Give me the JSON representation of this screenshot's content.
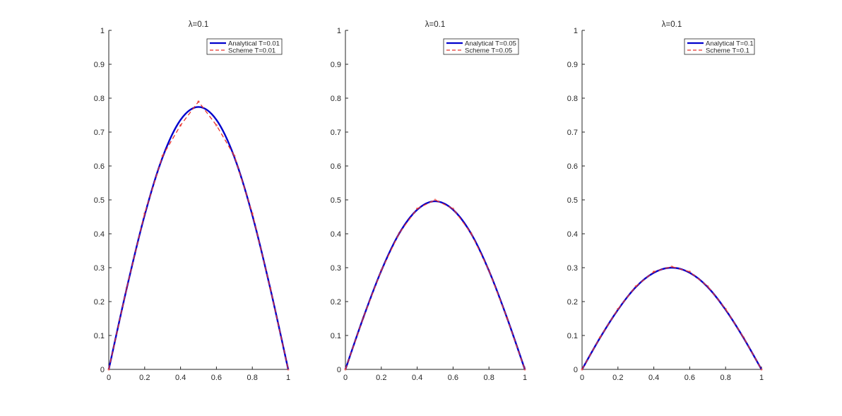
{
  "chart_data": [
    {
      "type": "line",
      "title": "λ=0.1",
      "xlim": [
        0,
        1
      ],
      "ylim": [
        0,
        1
      ],
      "xticks": [
        "0",
        "0.2",
        "0.4",
        "0.6",
        "0.8",
        "1"
      ],
      "yticks": [
        "0",
        "0.1",
        "0.2",
        "0.3",
        "0.4",
        "0.5",
        "0.6",
        "0.7",
        "0.8",
        "0.9",
        "1"
      ],
      "grid": false,
      "legend_position": "top-right",
      "series": [
        {
          "name": "Analytical T=0.01",
          "style": "solid",
          "color": "#0000cc",
          "x": [
            0,
            0.1,
            0.2,
            0.3,
            0.4,
            0.5,
            0.6,
            0.7,
            0.8,
            0.9,
            1
          ],
          "y": [
            0,
            0.239,
            0.455,
            0.626,
            0.736,
            0.774,
            0.736,
            0.626,
            0.455,
            0.239,
            0
          ]
        },
        {
          "name": "Scheme T=0.01",
          "style": "dashed",
          "color": "#e8302a",
          "x": [
            0,
            0.1,
            0.2,
            0.3,
            0.4,
            0.5,
            0.6,
            0.7,
            0.8,
            0.9,
            1
          ],
          "y": [
            0,
            0.24,
            0.46,
            0.63,
            0.72,
            0.79,
            0.72,
            0.63,
            0.46,
            0.24,
            0
          ]
        }
      ]
    },
    {
      "type": "line",
      "title": "λ=0.1",
      "xlim": [
        0,
        1
      ],
      "ylim": [
        0,
        1
      ],
      "xticks": [
        "0",
        "0.2",
        "0.4",
        "0.6",
        "0.8",
        "1"
      ],
      "yticks": [
        "0",
        "0.1",
        "0.2",
        "0.3",
        "0.4",
        "0.5",
        "0.6",
        "0.7",
        "0.8",
        "0.9",
        "1"
      ],
      "grid": false,
      "legend_position": "top-right",
      "series": [
        {
          "name": "Analytical T=0.05",
          "style": "solid",
          "color": "#0000cc",
          "x": [
            0,
            0.1,
            0.2,
            0.3,
            0.4,
            0.5,
            0.6,
            0.7,
            0.8,
            0.9,
            1
          ],
          "y": [
            0,
            0.153,
            0.291,
            0.401,
            0.471,
            0.496,
            0.471,
            0.401,
            0.291,
            0.153,
            0
          ]
        },
        {
          "name": "Scheme T=0.05",
          "style": "dashed",
          "color": "#e8302a",
          "x": [
            0,
            0.1,
            0.2,
            0.3,
            0.4,
            0.5,
            0.6,
            0.7,
            0.8,
            0.9,
            1
          ],
          "y": [
            0,
            0.153,
            0.292,
            0.402,
            0.474,
            0.5,
            0.474,
            0.402,
            0.292,
            0.153,
            0
          ]
        }
      ]
    },
    {
      "type": "line",
      "title": "λ=0.1",
      "xlim": [
        0,
        1
      ],
      "ylim": [
        0,
        1
      ],
      "xticks": [
        "0",
        "0.2",
        "0.4",
        "0.6",
        "0.8",
        "1"
      ],
      "yticks": [
        "0",
        "0.1",
        "0.2",
        "0.3",
        "0.4",
        "0.5",
        "0.6",
        "0.7",
        "0.8",
        "0.9",
        "1"
      ],
      "grid": false,
      "legend_position": "top-right",
      "series": [
        {
          "name": "Analytical T=0.1",
          "style": "solid",
          "color": "#0000cc",
          "x": [
            0,
            0.1,
            0.2,
            0.3,
            0.4,
            0.5,
            0.6,
            0.7,
            0.8,
            0.9,
            1
          ],
          "y": [
            0,
            0.093,
            0.176,
            0.243,
            0.285,
            0.3,
            0.285,
            0.243,
            0.176,
            0.093,
            0
          ]
        },
        {
          "name": "Scheme T=0.1",
          "style": "dashed",
          "color": "#e8302a",
          "x": [
            0,
            0.1,
            0.2,
            0.3,
            0.4,
            0.5,
            0.6,
            0.7,
            0.8,
            0.9,
            1
          ],
          "y": [
            0,
            0.094,
            0.178,
            0.245,
            0.288,
            0.303,
            0.288,
            0.245,
            0.178,
            0.094,
            0
          ]
        }
      ]
    }
  ]
}
